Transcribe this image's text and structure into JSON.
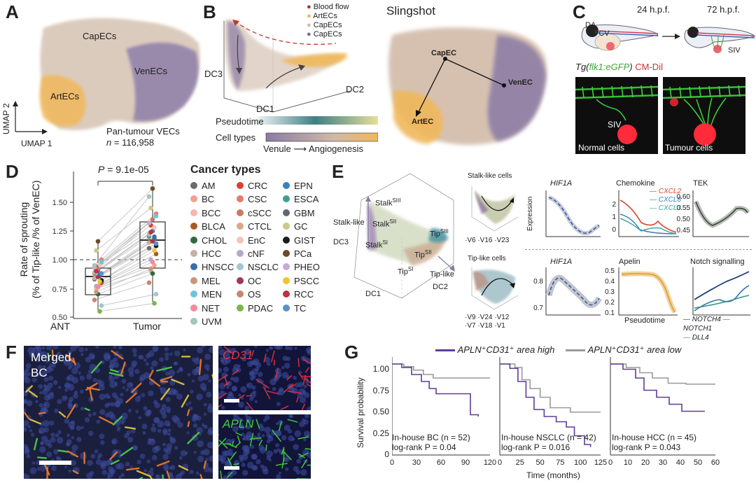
{
  "colors": {
    "capec": "#cfb9a7",
    "venec": "#8a7aa5",
    "artec": "#f0b85a",
    "blood": "#c0392b",
    "purple": "#5e3c99",
    "gray": "#9a9a9a",
    "blue": "#2c73b5",
    "teal": "#3fa9a1"
  },
  "panelA": {
    "label": "A",
    "cap": "CapECs",
    "ven": "VenECs",
    "art": "ArtECs",
    "axis_y": "UMAP 2",
    "axis_x": "UMAP 1",
    "title": "Pan-tumour VECs",
    "n_label": "n",
    "n_value": "= 116,958"
  },
  "panelB": {
    "label": "B",
    "legend": [
      {
        "name": "Blood flow",
        "color": "#a8323e"
      },
      {
        "name": "ArtECs",
        "color": "#f0b85a"
      },
      {
        "name": "CapECs",
        "color": "#cfb9a7"
      },
      {
        "name": "CapECs",
        "color": "#7a6a9a"
      }
    ],
    "dc3": "DC3",
    "dc1": "DC1",
    "dc2": "DC2",
    "pseudotime": "Pseudotime",
    "celltypes": "Cell types",
    "venule": "Venule",
    "arrow": "⟶",
    "angiogenesis": "Angiogenesis",
    "slingshot": "Slingshot",
    "capec": "CapEC",
    "venec": "VenEC",
    "artec": "ArtEC"
  },
  "panelC": {
    "label": "C",
    "t24": "24 h.p.f.",
    "t72": "72 h.p.f.",
    "da": "DA",
    "pcv": "PCV",
    "siv": "SIV",
    "tg_prefix": "Tg(",
    "tg_gene": "flk1:eGFP",
    "tg_suffix": ")",
    "cmdil": "CM-Dil",
    "siv2": "SIV",
    "normal": "Normal cells",
    "tumour": "Tumour cells"
  },
  "panelD": {
    "label": "D",
    "pval": "P = 9.1e-05",
    "ylabel1": "Rate of sprouting",
    "ylabel2": "(% of Tip-like /% of  VenEC)",
    "yticks": [
      "1.50",
      "1.25",
      "1.00",
      "0.75",
      "0.50"
    ],
    "xticks": [
      "ANT",
      "Tumor"
    ],
    "legend_title": "Cancer types",
    "cancers": [
      {
        "name": "AM",
        "color": "#6b6b6b"
      },
      {
        "name": "CRC",
        "color": "#d8412e"
      },
      {
        "name": "EPN",
        "color": "#3a7fc1"
      },
      {
        "name": "BC",
        "color": "#f0a28a"
      },
      {
        "name": "CSC",
        "color": "#e57b6b"
      },
      {
        "name": "ESCA",
        "color": "#3f9f8e"
      },
      {
        "name": "BCC",
        "color": "#f5b7a9"
      },
      {
        "name": "cSCC",
        "color": "#c67b63"
      },
      {
        "name": "GBM",
        "color": "#5b6a6e"
      },
      {
        "name": "BLCA",
        "color": "#a85a20"
      },
      {
        "name": "CTCL",
        "color": "#d6a88e"
      },
      {
        "name": "GC",
        "color": "#c9c98a"
      },
      {
        "name": "CHOL",
        "color": "#2e6b3a"
      },
      {
        "name": "EnC",
        "color": "#f4c4b4"
      },
      {
        "name": "GIST",
        "color": "#1c1c1c"
      },
      {
        "name": "HCC",
        "color": "#c8b0a4"
      },
      {
        "name": "cNF",
        "color": "#b5a8c8"
      },
      {
        "name": "PCa",
        "color": "#6b4c2a"
      },
      {
        "name": "HNSCC",
        "color": "#3a6ea8"
      },
      {
        "name": "NSCLC",
        "color": "#9fc7cf"
      },
      {
        "name": "PHEO",
        "color": "#c8a9d8"
      },
      {
        "name": "MEL",
        "color": "#c9967a"
      },
      {
        "name": "OC",
        "color": "#9e3a52"
      },
      {
        "name": "PSCC",
        "color": "#f1c232"
      },
      {
        "name": "MEN",
        "color": "#6ec4e0"
      },
      {
        "name": "OS",
        "color": "#c9866a"
      },
      {
        "name": "RCC",
        "color": "#c0303a"
      },
      {
        "name": "NET",
        "color": "#f08aa0"
      },
      {
        "name": "PDAC",
        "color": "#7ab648"
      },
      {
        "name": "TC",
        "color": "#5a8fc8"
      },
      {
        "name": "UVM",
        "color": "#a4c4c0"
      }
    ]
  },
  "panelE": {
    "label": "E",
    "stalk": "Stalk",
    "stalk_sup": [
      "SIII",
      "SII",
      "SI"
    ],
    "tip": "Tip",
    "tip_sup": [
      "SIII",
      "SII",
      "SI"
    ],
    "stalk_like": "Stalk-like",
    "tip_like": "Tip-like",
    "dc3": "DC3",
    "dc1": "DC1",
    "dc2": "DC2",
    "stalk_cells": "Stalk-like cells",
    "tip_cells": "Tip-like cells",
    "stalk_axis": "·V6 ·V16 ·V23",
    "tip_axis1": "·V9 ·V24 ·V12",
    "tip_axis2": "·V7 ·V18 ·V1",
    "hif1a": "HIF1A",
    "expression": "Expression",
    "chemokine": "Chemokine",
    "cxcl2": "CXCL2",
    "cxcl8": "CXCL8",
    "cxcl3": "CXCL3",
    "tek": "TEK",
    "tek_ticks": [
      "0.60",
      "0.55",
      "0.50",
      "0.45"
    ],
    "chemo_ticks": [
      "2",
      "1",
      "0"
    ],
    "hif_ticks2": [
      "0.8",
      "0.7"
    ],
    "apelin": "Apelin",
    "apelin_ticks": [
      "0.5",
      "0.4",
      "0.3",
      "0.2",
      "0.1"
    ],
    "pseudotime": "Pseudotime",
    "notch": "Notch signalling",
    "notch4": "NOTCH4",
    "notch1": "NOTCH1",
    "dll4": "DLL4"
  },
  "panelF": {
    "label": "F",
    "merged": "Merged",
    "bc": "BC",
    "cd31": "CD31",
    "apln": "APLN"
  },
  "panelG": {
    "label": "G",
    "high": "APLN⁺CD31⁺ area high",
    "low": "APLN⁺CD31⁺ area low",
    "ylabel": "Survival probability",
    "xlabel": "Time (months)",
    "yticks": [
      "1.00",
      "0.75",
      "0.50",
      "0.25",
      "0"
    ],
    "panels": [
      {
        "title": "In-house BC (n = 52)",
        "logrank": "log-rank P = 0.04",
        "xticks": [
          "0",
          "30",
          "60",
          "90",
          "120"
        ]
      },
      {
        "title": "In-house NSCLC (n = 42)",
        "logrank": "log-rank P = 0.016",
        "xticks": [
          "0",
          "25",
          "50",
          "75",
          "100",
          "125"
        ]
      },
      {
        "title": "In-house HCC (n = 45)",
        "logrank": "log-rank P = 0.043",
        "xticks": [
          "0",
          "10",
          "20",
          "30",
          "40",
          "50",
          "60"
        ]
      }
    ]
  }
}
